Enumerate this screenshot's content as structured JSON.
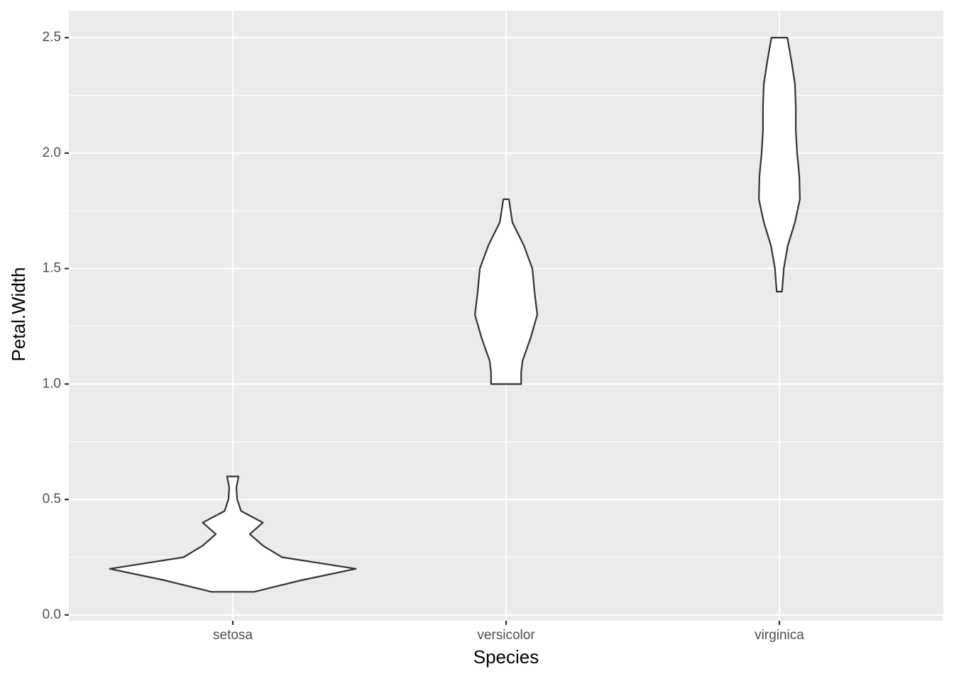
{
  "chart_data": {
    "type": "violin",
    "x_label": "Species",
    "y_label": "Petal.Width",
    "categories": [
      "setosa",
      "versicolor",
      "virginica"
    ],
    "violins": [
      {
        "y": [
          0.1,
          0.15,
          0.2,
          0.25,
          0.3,
          0.35,
          0.4,
          0.45,
          0.5,
          0.55,
          0.6
        ],
        "half_width": [
          0.078,
          0.25,
          0.45,
          0.18,
          0.11,
          0.062,
          0.11,
          0.03,
          0.016,
          0.013,
          0.021
        ]
      },
      {
        "y": [
          1.0,
          1.05,
          1.1,
          1.2,
          1.3,
          1.4,
          1.5,
          1.6,
          1.7,
          1.8
        ],
        "half_width": [
          0.055,
          0.055,
          0.06,
          0.09,
          0.114,
          0.104,
          0.096,
          0.065,
          0.023,
          0.01
        ]
      },
      {
        "y": [
          1.4,
          1.5,
          1.6,
          1.7,
          1.8,
          1.9,
          2.0,
          2.1,
          2.2,
          2.3,
          2.4,
          2.5
        ],
        "half_width": [
          0.01,
          0.016,
          0.031,
          0.057,
          0.075,
          0.073,
          0.065,
          0.06,
          0.06,
          0.057,
          0.044,
          0.029
        ]
      }
    ],
    "fill": "#ffffff",
    "outline": "#333333",
    "xlim": [
      0.4,
      3.6
    ],
    "ylim": [
      -0.025,
      2.617
    ],
    "yticks": [
      {
        "value": 0,
        "label": "0.0"
      },
      {
        "value": 0.5,
        "label": "0.5"
      },
      {
        "value": 1,
        "label": "1.0"
      },
      {
        "value": 1.5,
        "label": "1.5"
      },
      {
        "value": 2,
        "label": "2.0"
      },
      {
        "value": 2.5,
        "label": "2.5"
      }
    ],
    "y_minor_ticks": [
      0.25,
      0.75,
      1.25,
      1.75,
      2.25
    ],
    "grid": true
  }
}
